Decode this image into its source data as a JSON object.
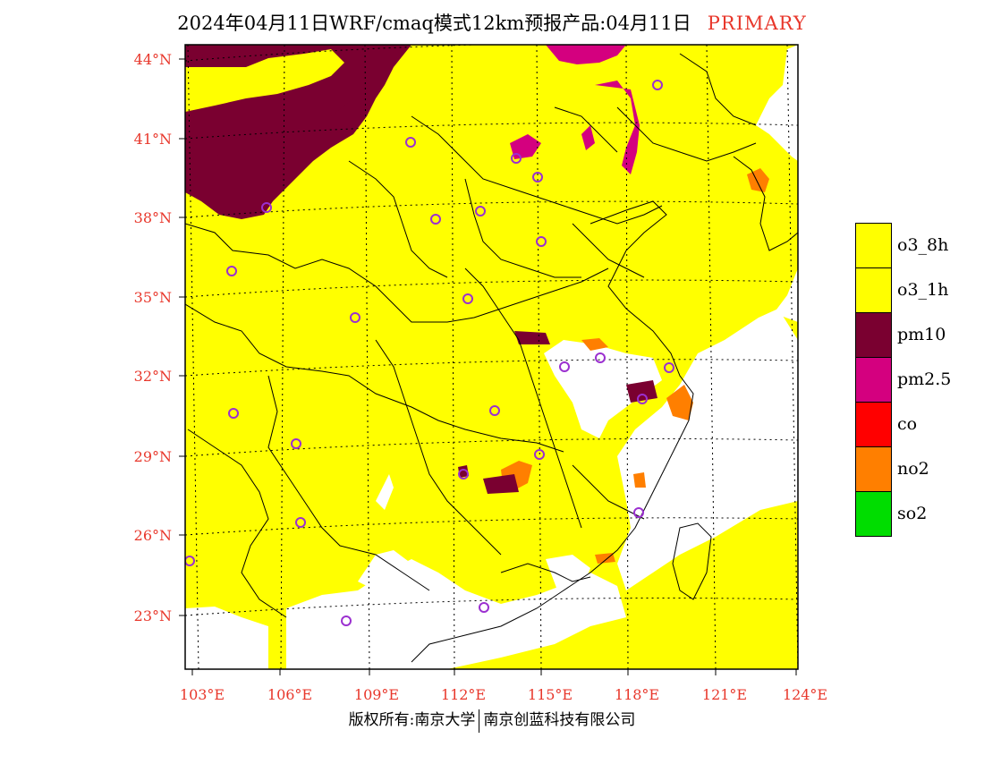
{
  "header": {
    "title": "2024年04月11日WRF/cmaq模式12km预报产品:04月11日",
    "badge": "PRIMARY",
    "badge_color": "#e8372b"
  },
  "map": {
    "lat_labels": [
      "44°N",
      "41°N",
      "38°N",
      "35°N",
      "32°N",
      "29°N",
      "26°N",
      "23°N"
    ],
    "lon_labels": [
      "103°E",
      "106°E",
      "109°E",
      "112°E",
      "115°E",
      "118°E",
      "121°E",
      "124°E"
    ],
    "lat_values": [
      44,
      41,
      38,
      35,
      32,
      29,
      26,
      23
    ],
    "lon_values": [
      103,
      106,
      109,
      112,
      115,
      118,
      121,
      124
    ],
    "extent": {
      "lon_min": 102.7,
      "lon_max": 124,
      "lat_min": 20.8,
      "lat_max": 44.4
    },
    "background_color": "#ffff00",
    "no_data_color": "#ffffff"
  },
  "legend": {
    "items": [
      {
        "label": "o3_8h",
        "color": "#ffff00"
      },
      {
        "label": "o3_1h",
        "color": "#ffff00"
      },
      {
        "label": "pm10",
        "color": "#7a0030"
      },
      {
        "label": "pm2.5",
        "color": "#d4007f"
      },
      {
        "label": "co",
        "color": "#ff0000"
      },
      {
        "label": "no2",
        "color": "#ff7f00"
      },
      {
        "label": "so2",
        "color": "#00dd00"
      }
    ]
  },
  "footer": {
    "left": "版权所有:南京大学",
    "right": "南京创蓝科技有限公司"
  }
}
